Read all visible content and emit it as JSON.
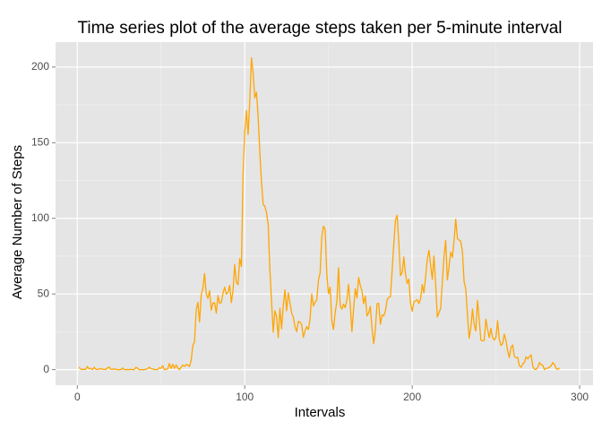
{
  "chart_data": {
    "type": "line",
    "title": "Time series plot of the average steps taken per 5-minute interval",
    "x_label": "Intervals",
    "y_label": "Average Number of Steps",
    "xlim": [
      -13,
      308
    ],
    "ylim": [
      -10.3,
      216.5
    ],
    "xticks": [
      0,
      100,
      200,
      300
    ],
    "yticks": [
      0,
      50,
      100,
      150,
      200
    ],
    "grid": true,
    "x": [
      1,
      2,
      3,
      4,
      5,
      6,
      7,
      8,
      9,
      10,
      11,
      12,
      13,
      14,
      15,
      16,
      17,
      18,
      19,
      20,
      21,
      22,
      23,
      24,
      25,
      26,
      27,
      28,
      29,
      30,
      31,
      32,
      33,
      34,
      35,
      36,
      37,
      38,
      39,
      40,
      41,
      42,
      43,
      44,
      45,
      46,
      47,
      48,
      49,
      50,
      51,
      52,
      53,
      54,
      55,
      56,
      57,
      58,
      59,
      60,
      61,
      62,
      63,
      64,
      65,
      66,
      67,
      68,
      69,
      70,
      71,
      72,
      73,
      74,
      75,
      76,
      77,
      78,
      79,
      80,
      81,
      82,
      83,
      84,
      85,
      86,
      87,
      88,
      89,
      90,
      91,
      92,
      93,
      94,
      95,
      96,
      97,
      98,
      99,
      100,
      101,
      102,
      103,
      104,
      105,
      106,
      107,
      108,
      109,
      110,
      111,
      112,
      113,
      114,
      115,
      116,
      117,
      118,
      119,
      120,
      121,
      122,
      123,
      124,
      125,
      126,
      127,
      128,
      129,
      130,
      131,
      132,
      133,
      134,
      135,
      136,
      137,
      138,
      139,
      140,
      141,
      142,
      143,
      144,
      145,
      146,
      147,
      148,
      149,
      150,
      151,
      152,
      153,
      154,
      155,
      156,
      157,
      158,
      159,
      160,
      161,
      162,
      163,
      164,
      165,
      166,
      167,
      168,
      169,
      170,
      171,
      172,
      173,
      174,
      175,
      176,
      177,
      178,
      179,
      180,
      181,
      182,
      183,
      184,
      185,
      186,
      187,
      188,
      189,
      190,
      191,
      192,
      193,
      194,
      195,
      196,
      197,
      198,
      199,
      200,
      201,
      202,
      203,
      204,
      205,
      206,
      207,
      208,
      209,
      210,
      211,
      212,
      213,
      214,
      215,
      216,
      217,
      218,
      219,
      220,
      221,
      222,
      223,
      224,
      225,
      226,
      227,
      228,
      229,
      230,
      231,
      232,
      233,
      234,
      235,
      236,
      237,
      238,
      239,
      240,
      241,
      242,
      243,
      244,
      245,
      246,
      247,
      248,
      249,
      250,
      251,
      252,
      253,
      254,
      255,
      256,
      257,
      258,
      259,
      260,
      261,
      262,
      263,
      264,
      265,
      266,
      267,
      268,
      269,
      270,
      271,
      272,
      273,
      274,
      275,
      276,
      277,
      278,
      279,
      280,
      281,
      282,
      283,
      284,
      285,
      286,
      287,
      288
    ],
    "series": [
      {
        "color": "#ffa500",
        "values": [
          1.7,
          0.3,
          0.1,
          0.2,
          0.1,
          2.1,
          0.5,
          0.9,
          0,
          1.5,
          0.3,
          0.1,
          0.3,
          0.7,
          0.2,
          0.3,
          0,
          1.1,
          1.8,
          0.2,
          0.2,
          0.4,
          0.3,
          0,
          0,
          0,
          1.1,
          0,
          0,
          0.1,
          0,
          0.2,
          0,
          0,
          1.5,
          0.9,
          0,
          0,
          0,
          0,
          0.2,
          0.6,
          1.6,
          0.6,
          0.5,
          0.1,
          0,
          0,
          1.2,
          0.9,
          2.6,
          0,
          0.3,
          0.4,
          4.1,
          0.7,
          3.5,
          0.8,
          3.1,
          1.1,
          0,
          1.6,
          3,
          2.2,
          3.3,
          3,
          2.1,
          6.1,
          16,
          18.3,
          39.5,
          44.5,
          31.5,
          49.3,
          53.8,
          63.5,
          50,
          47.1,
          52.2,
          39.3,
          44,
          44.2,
          37.4,
          49,
          43.8,
          44.4,
          50.5,
          54.5,
          49.9,
          51,
          55.7,
          44.3,
          52.3,
          69.5,
          57.8,
          56.2,
          73.4,
          68.2,
          129.4,
          157.5,
          171.2,
          155.4,
          177.3,
          206.2,
          195.9,
          179.6,
          183.4,
          167,
          143.5,
          124,
          109.1,
          108.1,
          103.7,
          96,
          66.2,
          45.2,
          24.8,
          38.8,
          35,
          21.1,
          40.6,
          27,
          42.4,
          52.7,
          38.9,
          50.8,
          44.3,
          37.4,
          34.7,
          28.3,
          25.1,
          31.9,
          31.4,
          29.7,
          21.3,
          25.5,
          28.4,
          26.5,
          33.4,
          50,
          42,
          44.6,
          46,
          59.2,
          63.9,
          87.7,
          94.8,
          92.8,
          63.4,
          50.2,
          54.5,
          32.4,
          26.5,
          37.7,
          45.1,
          67.3,
          42.3,
          39.9,
          43.3,
          41,
          46.2,
          56.4,
          42.8,
          25.1,
          40,
          53.5,
          47.3,
          60.8,
          55.8,
          52,
          43.6,
          48.7,
          35.5,
          37.5,
          41.8,
          27.5,
          17.1,
          26.1,
          43.6,
          43.8,
          30,
          36.1,
          35.5,
          38.8,
          46,
          47.8,
          48.1,
          65.3,
          82.9,
          98.7,
          102.1,
          84,
          62.1,
          64.1,
          74.5,
          63.2,
          56.9,
          59.8,
          43.9,
          38.6,
          44.7,
          45.5,
          46.2,
          43.7,
          46.6,
          56.3,
          50.7,
          61.2,
          72.7,
          78.9,
          68.9,
          59.7,
          75.1,
          56.5,
          34.8,
          37.5,
          40.7,
          58,
          74.7,
          85.3,
          59.3,
          67.8,
          77.7,
          74.2,
          85.3,
          99.5,
          86.6,
          85.6,
          84.9,
          77.8,
          58,
          53.4,
          36.3,
          20.7,
          27.4,
          40,
          30.2,
          25.5,
          45.7,
          33.5,
          19.6,
          19,
          19.3,
          33.3,
          26.8,
          21.2,
          27.3,
          21.3,
          19.5,
          21.3,
          32.3,
          20.2,
          15.9,
          17.2,
          23.5,
          19.2,
          12.5,
          8,
          14.7,
          16.3,
          8.7,
          7.8,
          8.1,
          2.6,
          1.5,
          3.7,
          4.8,
          8.5,
          7.1,
          8.7,
          9.8,
          2.2,
          0.3,
          0.1,
          1.6,
          4.6,
          3.3,
          2.8,
          0,
          0.8,
          1,
          1.6,
          2.6,
          4.7,
          3.3,
          0.6,
          0.2,
          1.1
        ]
      }
    ]
  }
}
